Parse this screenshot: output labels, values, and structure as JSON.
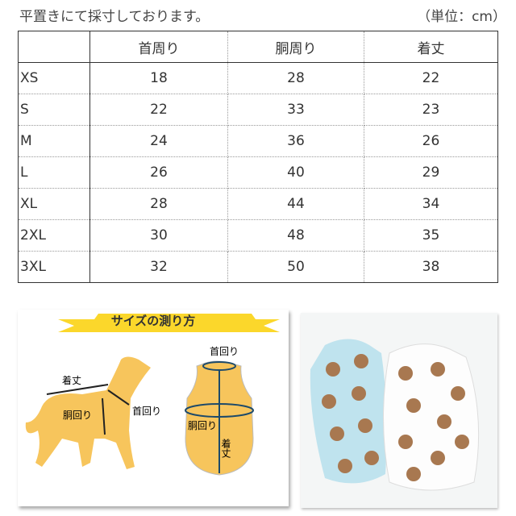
{
  "note": "平置きにて採寸しております。",
  "unit": "（単位：cm）",
  "table": {
    "headers": [
      "",
      "首周り",
      "胴周り",
      "着丈"
    ],
    "rows": [
      [
        "XS",
        "18",
        "28",
        "22"
      ],
      [
        "S",
        "22",
        "33",
        "23"
      ],
      [
        "M",
        "24",
        "36",
        "26"
      ],
      [
        "L",
        "26",
        "40",
        "29"
      ],
      [
        "XL",
        "28",
        "44",
        "34"
      ],
      [
        "2XL",
        "30",
        "48",
        "35"
      ],
      [
        "3XL",
        "32",
        "50",
        "38"
      ]
    ]
  },
  "diagram": {
    "banner": "サイズの測り方",
    "dog_length": "着丈",
    "dog_chest": "胴回り",
    "dog_neck": "首回り",
    "vest_neck": "首回り",
    "vest_chest": "胴回り",
    "vest_length": "着丈",
    "color": "#f7c55c"
  },
  "photo": {
    "colors": [
      "#bfe3ee",
      "#ffffff",
      "#a87850"
    ]
  }
}
